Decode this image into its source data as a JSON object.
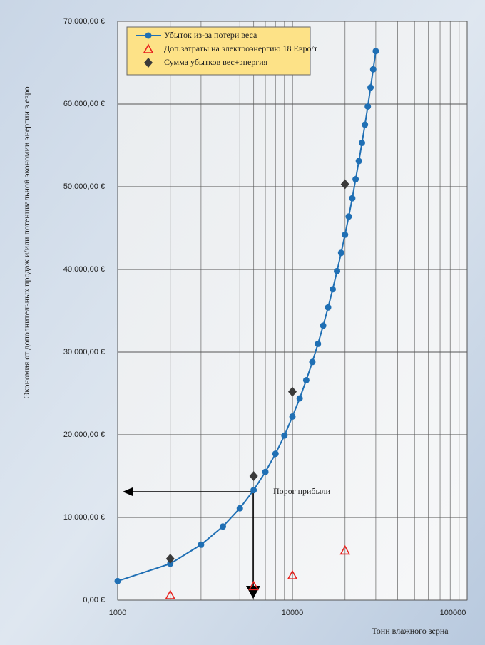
{
  "chart_data": {
    "type": "line",
    "x_label": "Тонн влажного зерна",
    "y_label": "Экономия от дополнительных продаж и/или потенциальной экономии энергии в евро",
    "annotation": "Порог прибыли",
    "x_scale": "log",
    "grid": true,
    "legend": "top-left",
    "xlim": [
      1000,
      100000
    ],
    "xticks": [
      1000,
      10000,
      100000
    ],
    "ylim": [
      0,
      70000
    ],
    "yticks": [
      {
        "value": 0,
        "label": "0,00 €"
      },
      {
        "value": 10000,
        "label": "10.000,00 €"
      },
      {
        "value": 20000,
        "label": "20.000,00 €"
      },
      {
        "value": 30000,
        "label": "30.000,00 €"
      },
      {
        "value": 40000,
        "label": "40.000,00 €"
      },
      {
        "value": 50000,
        "label": "50.000,00 €"
      },
      {
        "value": 60000,
        "label": "60.000,00 €"
      },
      {
        "value": 70000,
        "label": "70.000,00 €"
      }
    ],
    "series": [
      {
        "name": "Убыток из-за потери веса",
        "color": "#1f6fb4",
        "marker": "circle",
        "line": true,
        "x": [
          1000,
          2000,
          3000,
          4000,
          5000,
          6000,
          7000,
          8000,
          9000,
          10000,
          11000,
          12000,
          13000,
          14000,
          15000,
          16000,
          17000,
          18000,
          19000,
          20000,
          21000,
          22000,
          23000,
          24000,
          25000,
          26000,
          27000,
          28000,
          29000,
          30000
        ],
        "values": [
          2300,
          4400,
          6700,
          8900,
          11100,
          13300,
          15500,
          17700,
          19900,
          22200,
          24400,
          26600,
          28800,
          31000,
          33200,
          35400,
          37600,
          39800,
          42000,
          44200,
          46400,
          48600,
          50900,
          53100,
          55300,
          57500,
          59700,
          62000,
          64200,
          66400
        ]
      },
      {
        "name": "Доп.затраты на электроэнергию 18 Евро/т",
        "color": "#e8231f",
        "marker": "triangle",
        "line": false,
        "x": [
          2000,
          6000,
          10000,
          20000
        ],
        "values": [
          600,
          1700,
          3000,
          6000
        ]
      },
      {
        "name": "Сумма убытков вес+энергия",
        "color": "#3a3a3a",
        "marker": "diamond",
        "line": false,
        "x": [
          2000,
          6000,
          10000,
          20000
        ],
        "values": [
          5000,
          15000,
          25200,
          50300
        ]
      }
    ]
  }
}
